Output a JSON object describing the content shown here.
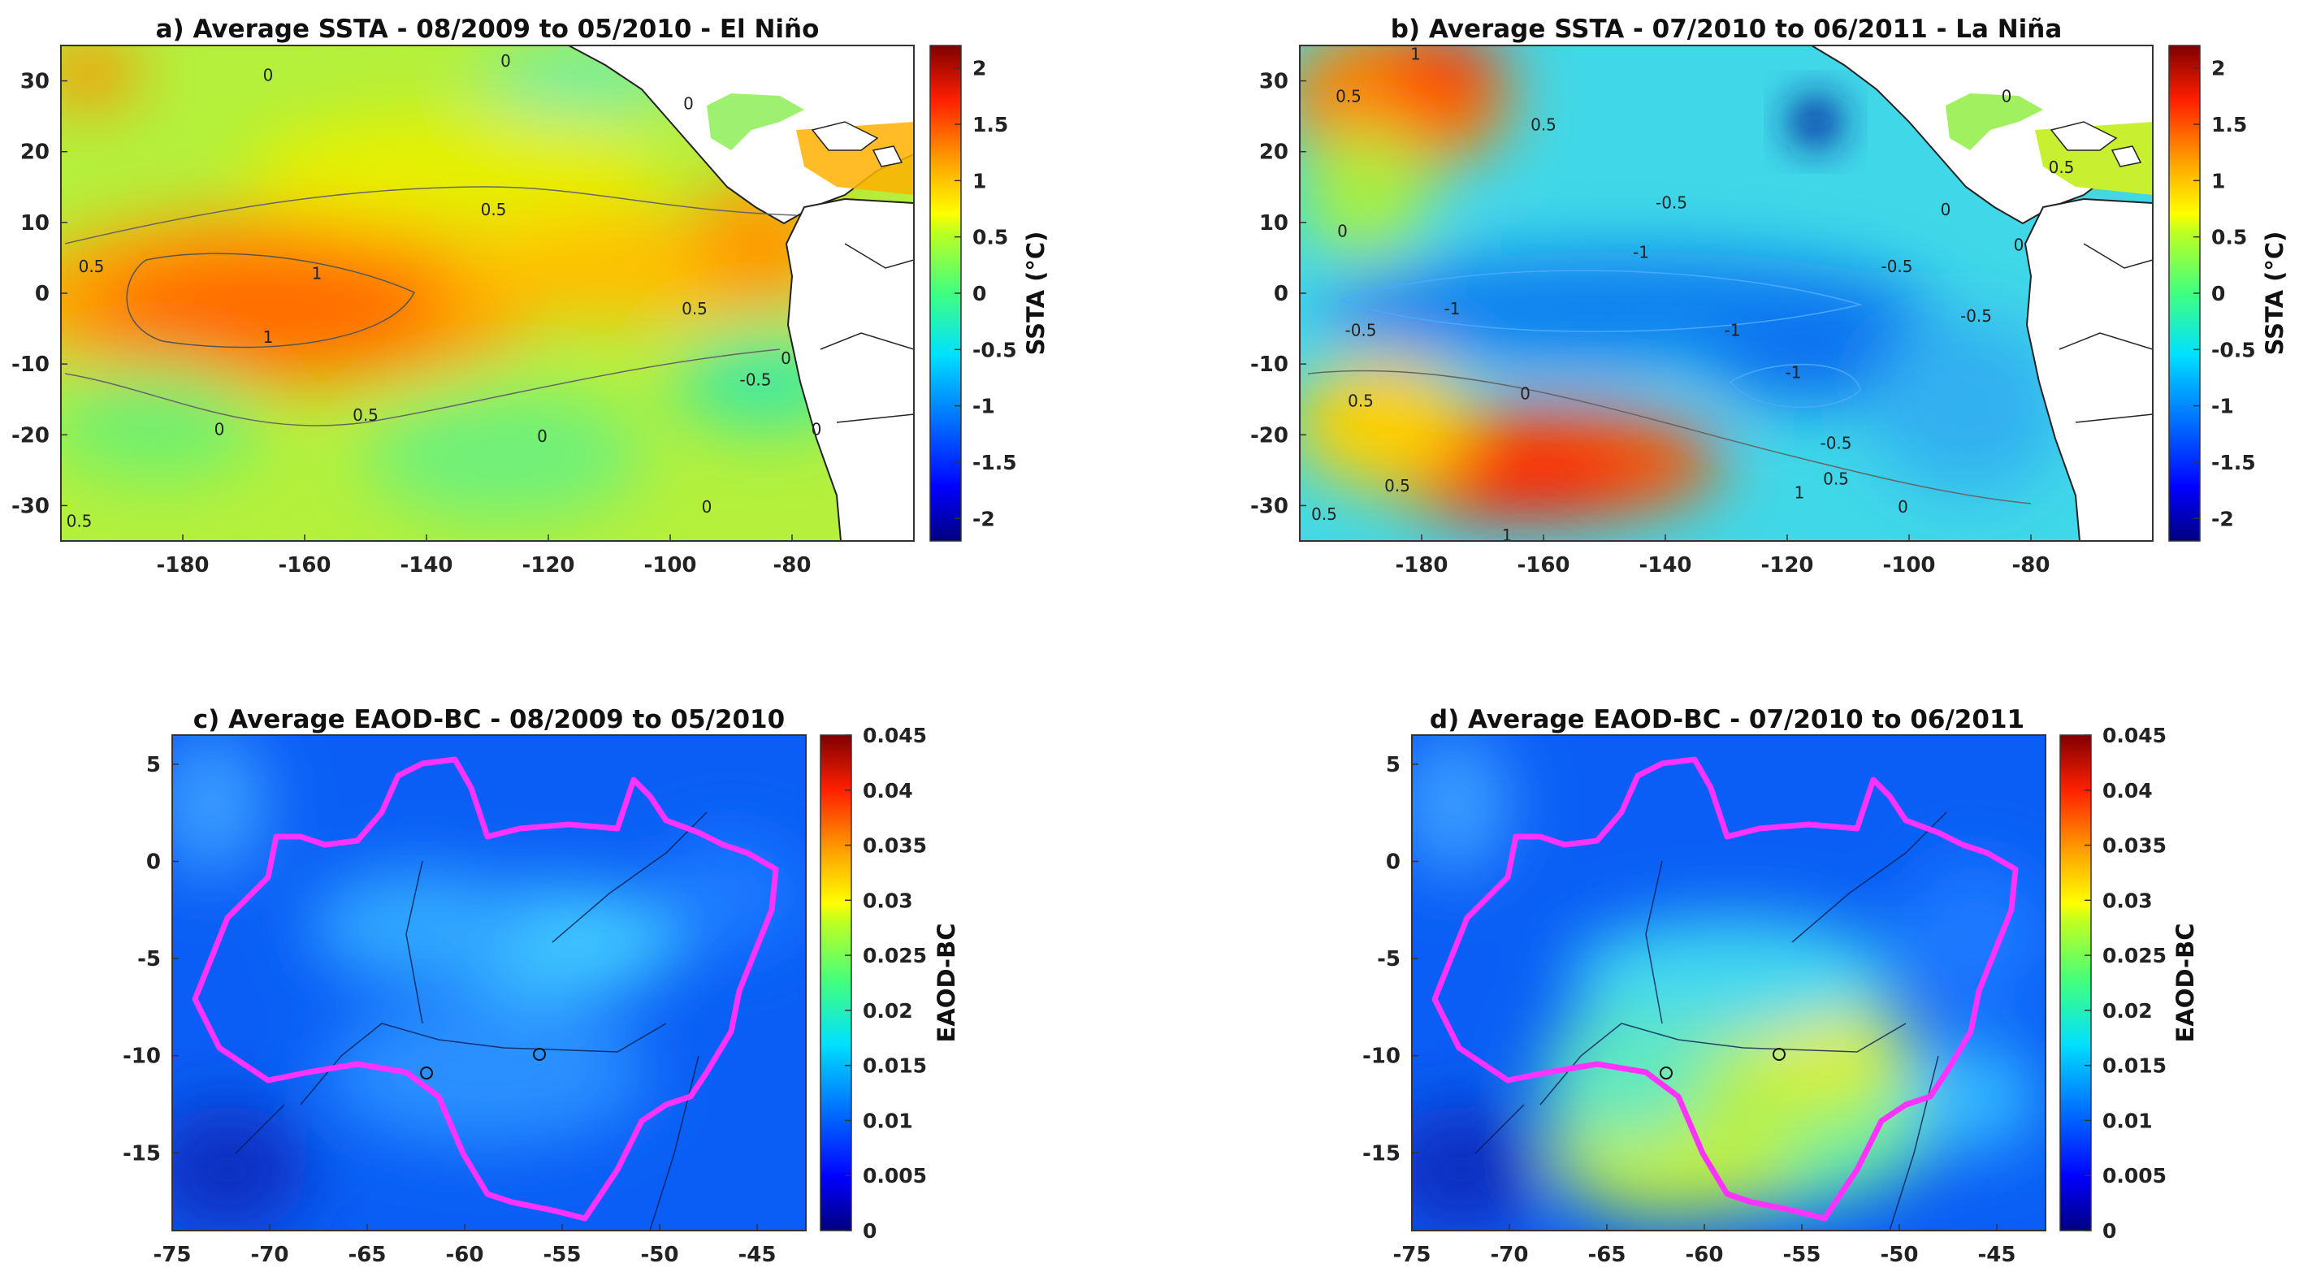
{
  "chart_data": [
    {
      "type": "heatmap",
      "title": "a) Average SSTA - 08/2009 to 05/2010 - El Niño",
      "x_ticks": [
        "-180",
        "-160",
        "-140",
        "-120",
        "-100",
        "-80"
      ],
      "x_tick_values": [
        -180,
        -160,
        -140,
        -120,
        -100,
        -80
      ],
      "y_ticks": [
        "30",
        "20",
        "10",
        "0",
        "-10",
        "-20",
        "-30"
      ],
      "y_tick_values": [
        30,
        20,
        10,
        0,
        -10,
        -20,
        -30
      ],
      "xlim": [
        -200,
        -60
      ],
      "ylim": [
        -35,
        35
      ],
      "colorbar": {
        "label": "SSTA (°C)",
        "range": [
          -2.2,
          2.2
        ],
        "ticks": [
          "2",
          "1.5",
          "1",
          "0.5",
          "0",
          "-0.5",
          "-1",
          "-1.5",
          "-2"
        ],
        "tick_values": [
          2,
          1.5,
          1,
          0.5,
          0,
          -0.5,
          -1,
          -1.5,
          -2
        ]
      },
      "contour_labels": [
        {
          "text": "0",
          "lon": -166,
          "lat": 30
        },
        {
          "text": "0",
          "lon": -127,
          "lat": 32
        },
        {
          "text": "0.5",
          "lon": -129,
          "lat": 11
        },
        {
          "text": "0.5",
          "lon": -195,
          "lat": 3
        },
        {
          "text": "1",
          "lon": -158,
          "lat": 2
        },
        {
          "text": "1",
          "lon": -166,
          "lat": -7
        },
        {
          "text": "0.5",
          "lon": -96,
          "lat": -3
        },
        {
          "text": "0",
          "lon": -81,
          "lat": -10
        },
        {
          "text": "-0.5",
          "lon": -86,
          "lat": -13
        },
        {
          "text": "0.5",
          "lon": -150,
          "lat": -18
        },
        {
          "text": "0",
          "lon": -174,
          "lat": -20
        },
        {
          "text": "0",
          "lon": -121,
          "lat": -21
        },
        {
          "text": "0",
          "lon": -76,
          "lat": -20
        },
        {
          "text": "0",
          "lon": -94,
          "lat": -31
        },
        {
          "text": "0.5",
          "lon": -197,
          "lat": -33
        },
        {
          "text": "0",
          "lon": -97,
          "lat": 26
        }
      ]
    },
    {
      "type": "heatmap",
      "title": "b) Average SSTA - 07/2010 to 06/2011 - La Niña",
      "x_ticks": [
        "-180",
        "-160",
        "-140",
        "-120",
        "-100",
        "-80"
      ],
      "x_tick_values": [
        -180,
        -160,
        -140,
        -120,
        -100,
        -80
      ],
      "y_ticks": [
        "30",
        "20",
        "10",
        "0",
        "-10",
        "-20",
        "-30"
      ],
      "y_tick_values": [
        30,
        20,
        10,
        0,
        -10,
        -20,
        -30
      ],
      "xlim": [
        -200,
        -60
      ],
      "ylim": [
        -35,
        35
      ],
      "colorbar": {
        "label": "SSTA (°C)",
        "range": [
          -2.2,
          2.2
        ],
        "ticks": [
          "2",
          "1.5",
          "1",
          "0.5",
          "0",
          "-0.5",
          "-1",
          "-1.5",
          "-2"
        ],
        "tick_values": [
          2,
          1.5,
          1,
          0.5,
          0,
          -0.5,
          -1,
          -1.5,
          -2
        ]
      },
      "contour_labels": [
        {
          "text": "1",
          "lon": -181,
          "lat": 33
        },
        {
          "text": "0.5",
          "lon": -192,
          "lat": 27
        },
        {
          "text": "0.5",
          "lon": -160,
          "lat": 23
        },
        {
          "text": "-0.5",
          "lon": -139,
          "lat": 12
        },
        {
          "text": "0",
          "lon": -193,
          "lat": 8
        },
        {
          "text": "-1",
          "lon": -144,
          "lat": 5
        },
        {
          "text": "-0.5",
          "lon": -102,
          "lat": 3
        },
        {
          "text": "-1",
          "lon": -175,
          "lat": -3
        },
        {
          "text": "-0.5",
          "lon": -190,
          "lat": -6
        },
        {
          "text": "-1",
          "lon": -129,
          "lat": -6
        },
        {
          "text": "-1",
          "lon": -119,
          "lat": -12
        },
        {
          "text": "0",
          "lon": -163,
          "lat": -15
        },
        {
          "text": "0.5",
          "lon": -190,
          "lat": -16
        },
        {
          "text": "-0.5",
          "lon": -112,
          "lat": -22
        },
        {
          "text": "0.5",
          "lon": -112,
          "lat": -27
        },
        {
          "text": "1",
          "lon": -118,
          "lat": -29
        },
        {
          "text": "0.5",
          "lon": -184,
          "lat": -28
        },
        {
          "text": "0.5",
          "lon": -196,
          "lat": -32
        },
        {
          "text": "1",
          "lon": -166,
          "lat": -35
        },
        {
          "text": "0",
          "lon": -101,
          "lat": -31
        },
        {
          "text": "0",
          "lon": -94,
          "lat": 11
        },
        {
          "text": "-0.5",
          "lon": -89,
          "lat": -4
        },
        {
          "text": "0",
          "lon": -82,
          "lat": 6
        },
        {
          "text": "0",
          "lon": -84,
          "lat": 27
        },
        {
          "text": "0.5",
          "lon": -75,
          "lat": 17
        }
      ]
    },
    {
      "type": "heatmap",
      "title": "c) Average EAOD-BC - 08/2009 to 05/2010",
      "x_ticks": [
        "-75",
        "-70",
        "-65",
        "-60",
        "-55",
        "-50",
        "-45"
      ],
      "x_tick_values": [
        -75,
        -70,
        -65,
        -60,
        -55,
        -50,
        -45
      ],
      "y_ticks": [
        "5",
        "0",
        "-5",
        "-10",
        "-15"
      ],
      "y_tick_values": [
        5,
        0,
        -5,
        -10,
        -15
      ],
      "xlim": [
        -75,
        -42.5
      ],
      "ylim": [
        -19,
        6.5
      ],
      "colorbar": {
        "label": "EAOD-BC",
        "range": [
          0,
          0.045
        ],
        "ticks": [
          "0.045",
          "0.04",
          "0.035",
          "0.03",
          "0.025",
          "0.02",
          "0.015",
          "0.01",
          "0.005",
          "0"
        ],
        "tick_values": [
          0.045,
          0.04,
          0.035,
          0.03,
          0.025,
          0.02,
          0.015,
          0.01,
          0.005,
          0
        ]
      }
    },
    {
      "type": "heatmap",
      "title": "d) Average EAOD-BC - 07/2010 to 06/2011",
      "x_ticks": [
        "-75",
        "-70",
        "-65",
        "-60",
        "-55",
        "-50",
        "-45"
      ],
      "x_tick_values": [
        -75,
        -70,
        -65,
        -60,
        -55,
        -50,
        -45
      ],
      "y_ticks": [
        "5",
        "0",
        "-5",
        "-10",
        "-15"
      ],
      "y_tick_values": [
        5,
        0,
        -5,
        -10,
        -15
      ],
      "xlim": [
        -75,
        -42.5
      ],
      "ylim": [
        -19,
        6.5
      ],
      "colorbar": {
        "label": "EAOD-BC",
        "range": [
          0,
          0.045
        ],
        "ticks": [
          "0.045",
          "0.04",
          "0.035",
          "0.03",
          "0.025",
          "0.02",
          "0.015",
          "0.01",
          "0.005",
          "0"
        ],
        "tick_values": [
          0.045,
          0.04,
          0.035,
          0.03,
          0.025,
          0.02,
          0.015,
          0.01,
          0.005,
          0
        ]
      }
    }
  ],
  "colors": {
    "legal_amazon_boundary": "#ff33ff",
    "land_mask": "#ffffff",
    "coastline": "#111111"
  }
}
